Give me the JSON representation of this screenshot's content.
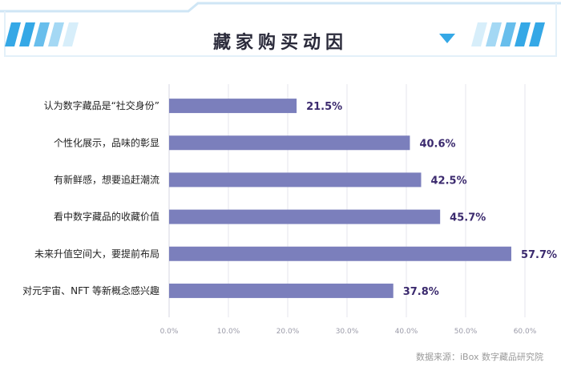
{
  "title": "藏家购买动因",
  "source": "数据来源：iBox 数字藏品研究院",
  "colors": {
    "bar": "#7b7fbc",
    "header_stripe": "#35a8e6",
    "header_border": "#cfe6f5",
    "value_text": "#3b2a6e"
  },
  "chart_data": {
    "type": "bar",
    "orientation": "horizontal",
    "categories": [
      "认为数字藏品是“社交身份”",
      "个性化展示，品味的彰显",
      "有新鲜感，想要追赶潮流",
      "看中数字藏品的收藏价值",
      "未来升值空间大，要提前布局",
      "对元宇宙、NFT 等新概念感兴趣"
    ],
    "values": [
      21.5,
      40.6,
      42.5,
      45.7,
      57.7,
      37.8
    ],
    "value_labels": [
      "21.5%",
      "40.6%",
      "42.5%",
      "45.7%",
      "57.7%",
      "37.8%"
    ],
    "xlim": [
      0,
      60
    ],
    "xticks": [
      "0.0%",
      "10.0%",
      "20.0%",
      "30.0%",
      "40.0%",
      "50.0%",
      "60.0%"
    ],
    "grid": true
  }
}
